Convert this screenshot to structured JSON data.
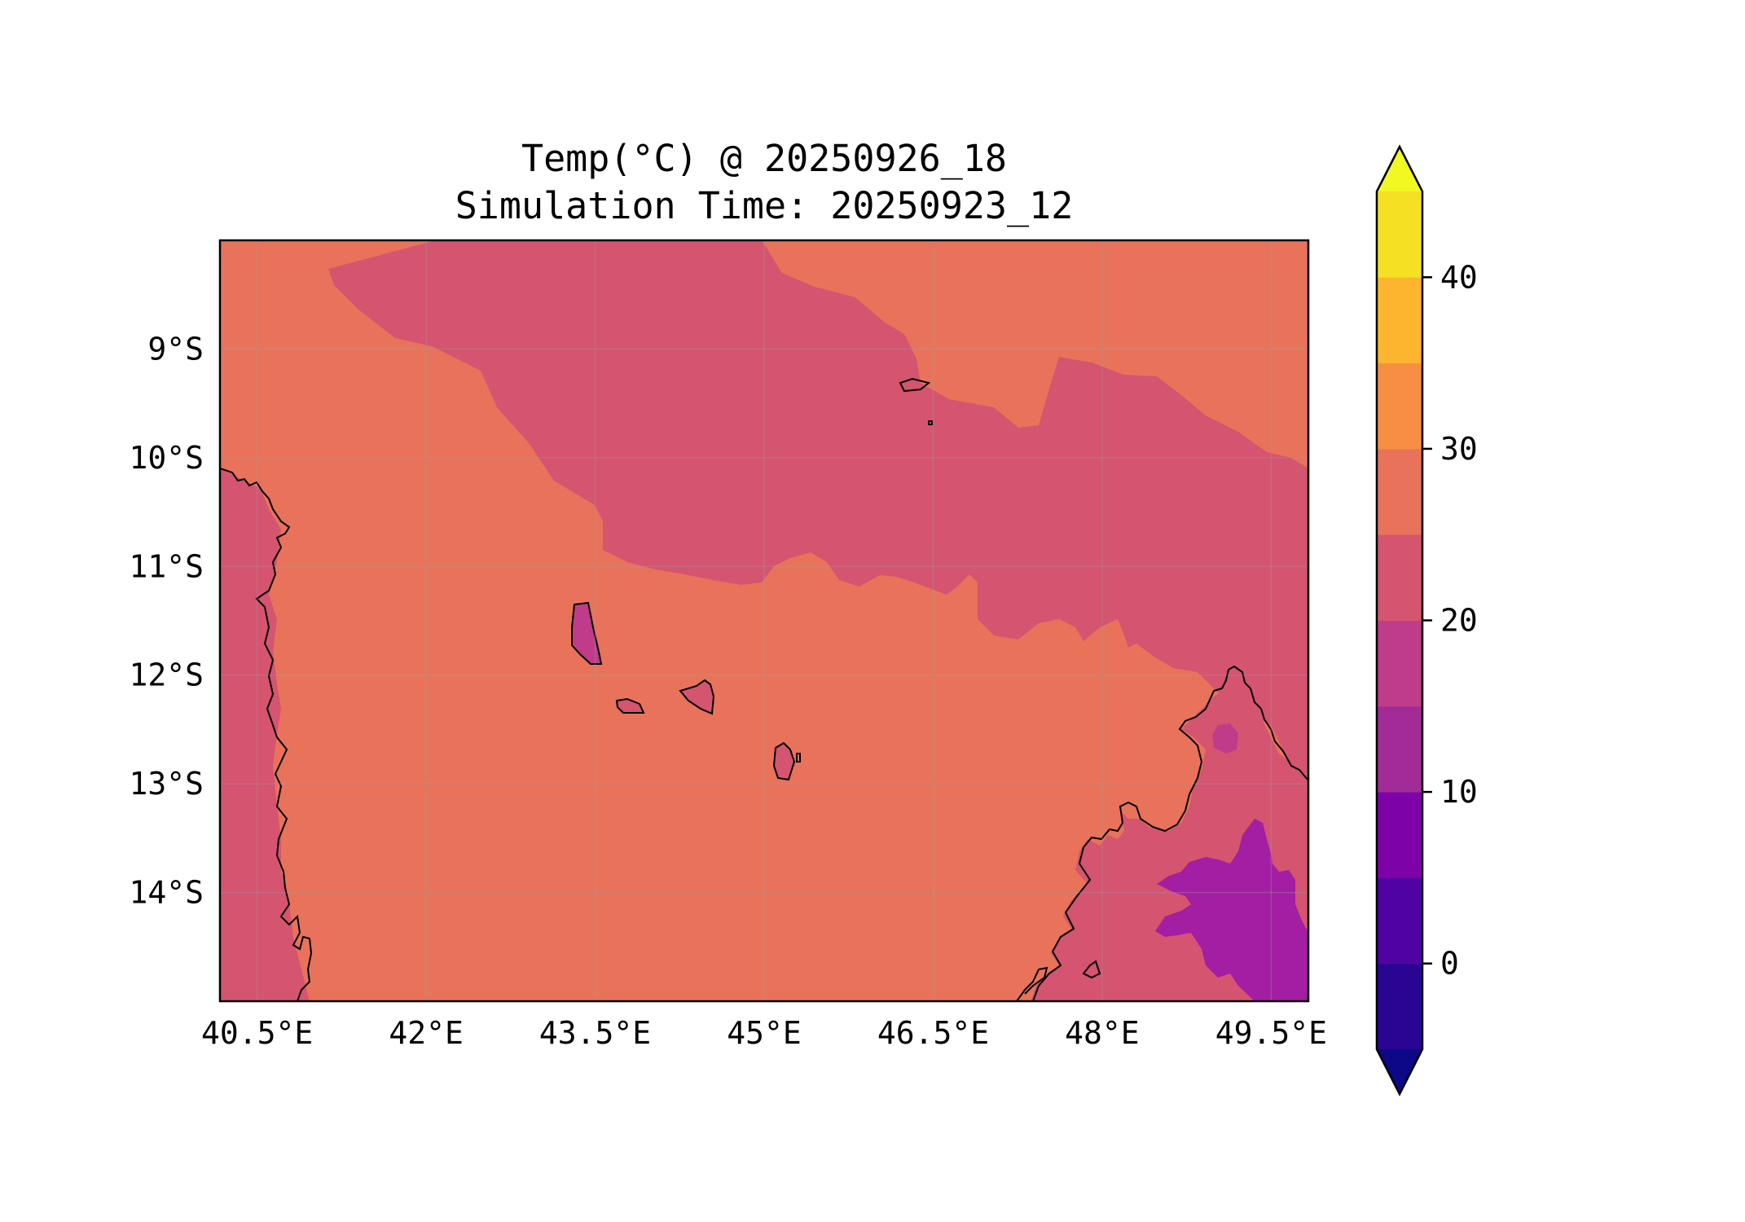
{
  "title": {
    "line1": "Temp(°C) @ 20250926_18",
    "line2": "Simulation Time: 20250923_12"
  },
  "map": {
    "lon_range": [
      40.17,
      49.83
    ],
    "lat_range": [
      -15.0,
      -8.0
    ],
    "lon_ticks": [
      "40.5°E",
      "42°E",
      "43.5°E",
      "45°E",
      "46.5°E",
      "48°E",
      "49.5°E"
    ],
    "lat_ticks": [
      "9°S",
      "10°S",
      "11°S",
      "12°S",
      "13°S",
      "14°S"
    ],
    "ocean_band_color": "#d55470",
    "dominant_color": "#e8735a",
    "cool_land_color": "#bf3c8a",
    "coldest_color": "#a31ea2"
  },
  "colorbar": {
    "extend": "both",
    "ticks": [
      "0",
      "10",
      "20",
      "30",
      "40"
    ],
    "tick_values": [
      0,
      10,
      20,
      30,
      40
    ],
    "levels": [
      -5,
      0,
      5,
      10,
      15,
      20,
      25,
      30,
      35,
      40,
      45
    ],
    "colors": [
      "#0d0887",
      "#2a0593",
      "#5102a3",
      "#7d03a8",
      "#a22b97",
      "#bf3c8a",
      "#d55470",
      "#e8735a",
      "#f68f44",
      "#fdb42f",
      "#f5e024",
      "#f0f921"
    ]
  }
}
